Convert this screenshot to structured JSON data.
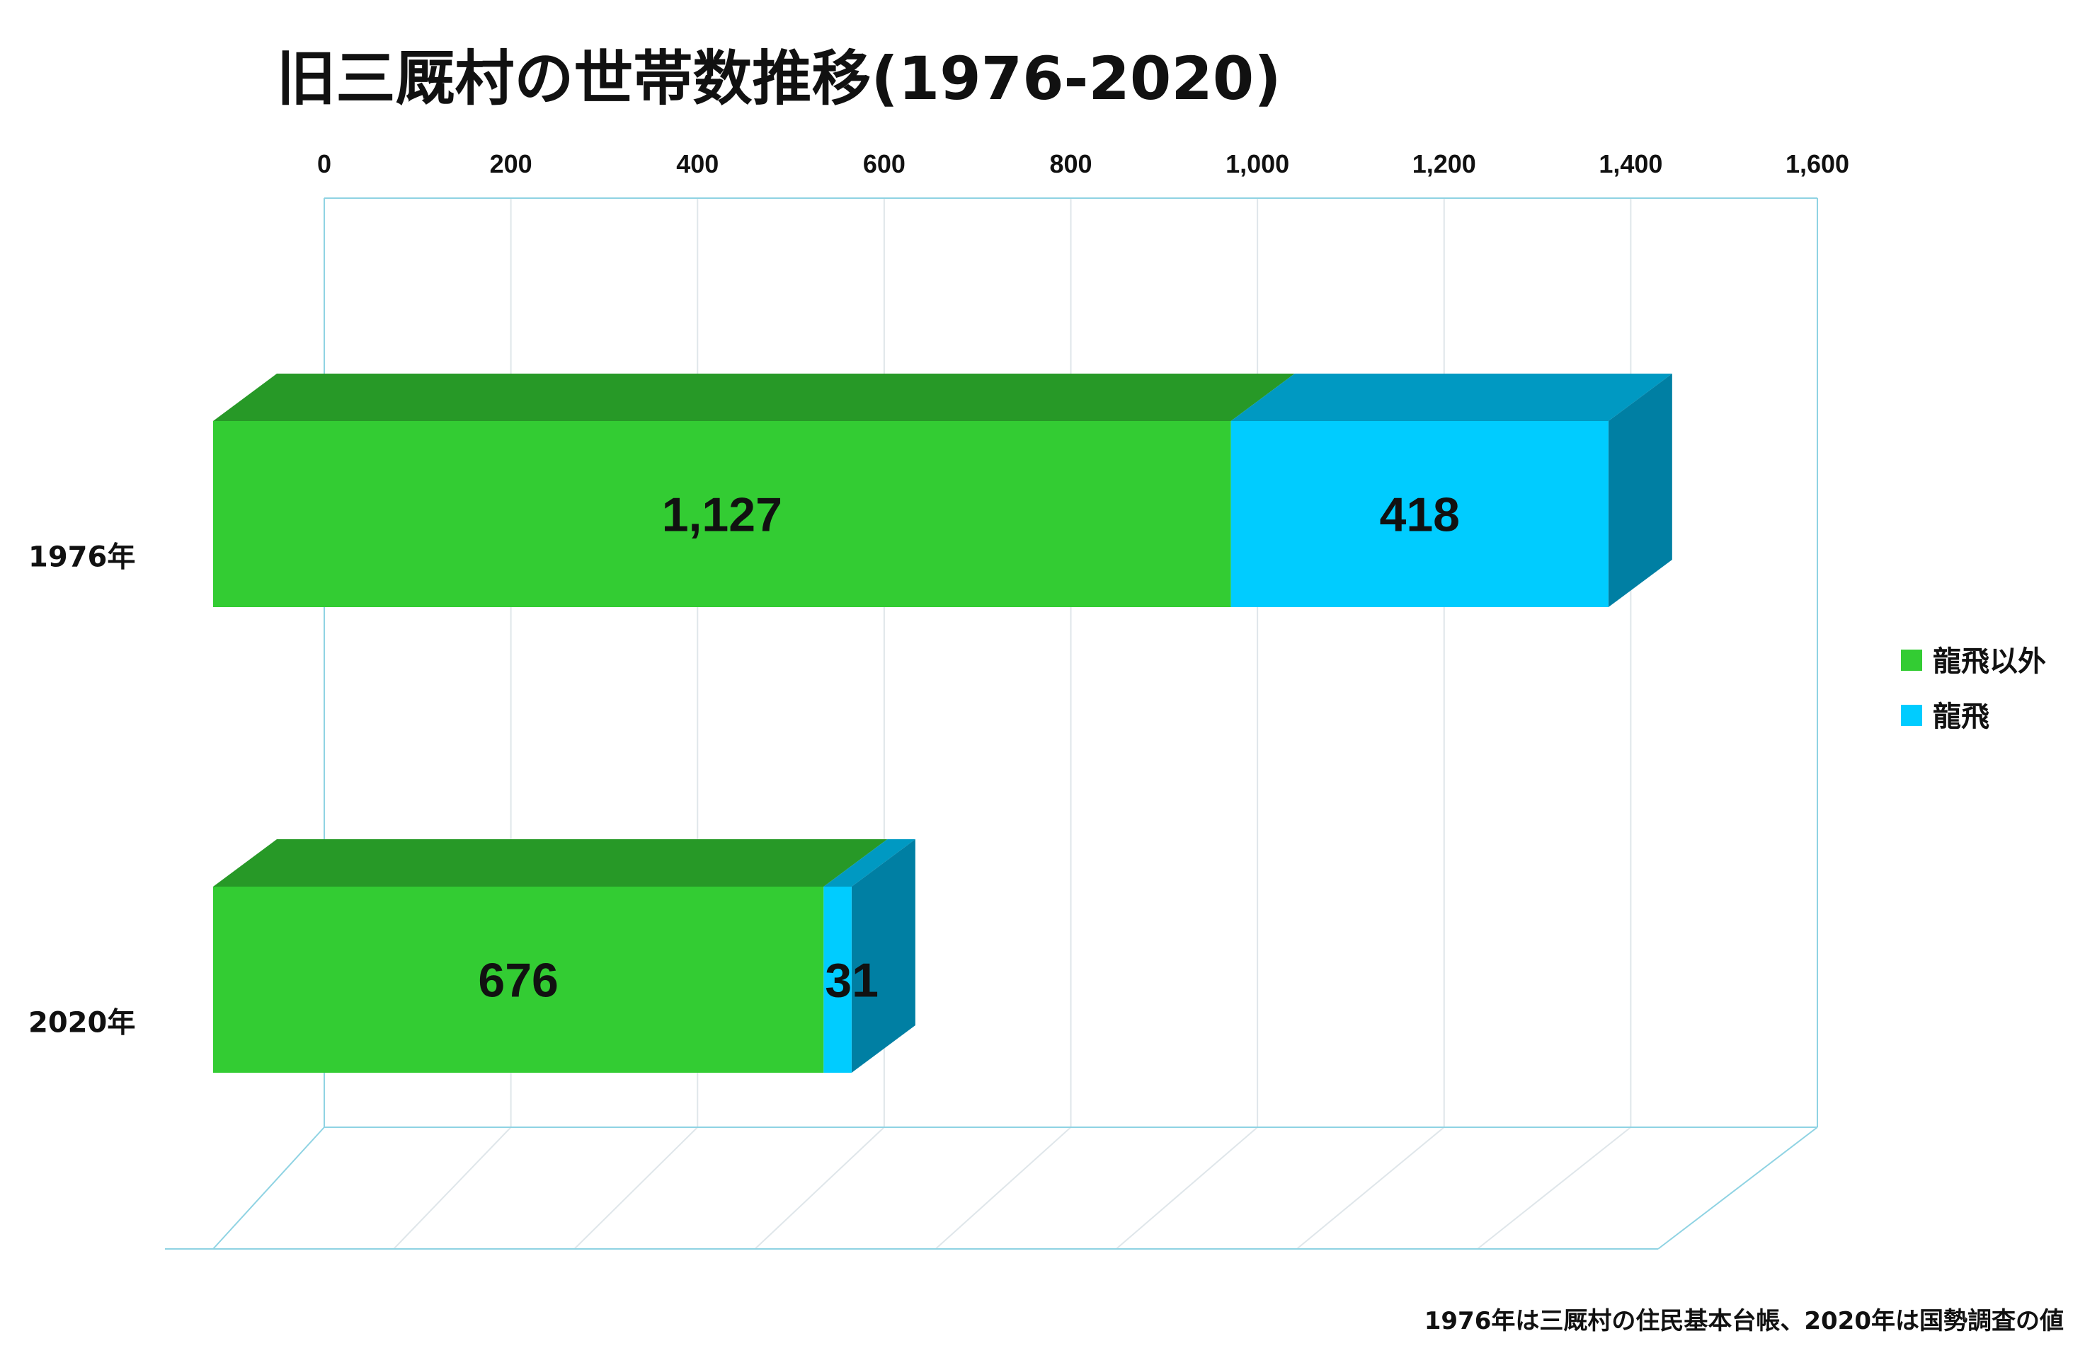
{
  "chart_data": {
    "type": "bar",
    "orientation": "horizontal",
    "stacked": true,
    "style": "3d",
    "title": "旧三厩村の世帯数推移(1976-2020)",
    "categories": [
      "1976年",
      "2020年"
    ],
    "series": [
      {
        "name": "龍飛以外",
        "values": [
          1127,
          676
        ],
        "value_labels": [
          "1,127",
          "676"
        ]
      },
      {
        "name": "龍飛",
        "values": [
          418,
          31
        ],
        "value_labels": [
          "418",
          "31"
        ]
      }
    ],
    "xlim": [
      0,
      1600
    ],
    "xticks": [
      0,
      200,
      400,
      600,
      800,
      1000,
      1200,
      1400,
      1600
    ],
    "xtick_labels": [
      "0",
      "200",
      "400",
      "600",
      "800",
      "1,000",
      "1,200",
      "1,400",
      "1,600"
    ],
    "grid": true,
    "legend_position": "right",
    "note": "1976年は三厩村の住民基本台帳、2020年は国勢調査の値"
  },
  "colors": {
    "series_front": [
      "#33cc33",
      "#00ccff"
    ],
    "series_top": [
      "#279927",
      "#0099c2"
    ],
    "series_side": [
      "#1f801f",
      "#007fa3"
    ]
  }
}
